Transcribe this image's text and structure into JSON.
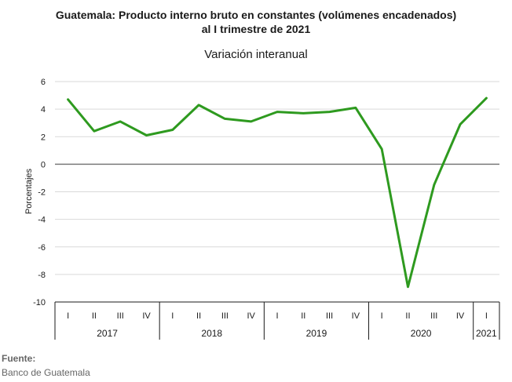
{
  "header": {
    "title_line1": "Guatemala: Producto interno bruto en constantes (volúmenes encadenados)",
    "title_line2": "al I trimestre de 2021",
    "subtitle": "Variación interanual"
  },
  "footer": {
    "source_label": "Fuente:",
    "source_text": "Banco de Guatemala"
  },
  "chart_data": {
    "type": "line",
    "title": "Guatemala: Producto interno bruto en constantes (volúmenes encadenados) al I trimestre de 2021",
    "subtitle": "Variación interanual",
    "ylabel": "Porcentajes",
    "xlabel": "",
    "ylim": [
      -10,
      6
    ],
    "yticks": [
      6,
      4,
      2,
      0,
      -2,
      -4,
      -6,
      -8,
      -10
    ],
    "grid": true,
    "legend": "none",
    "line_color": "#2e9a1f",
    "categories": [
      "I",
      "II",
      "III",
      "IV",
      "I",
      "II",
      "III",
      "IV",
      "I",
      "II",
      "III",
      "IV",
      "I",
      "II",
      "III",
      "IV",
      "I"
    ],
    "years": [
      {
        "label": "2017",
        "quarters": 4
      },
      {
        "label": "2018",
        "quarters": 4
      },
      {
        "label": "2019",
        "quarters": 4
      },
      {
        "label": "2020",
        "quarters": 4
      },
      {
        "label": "2021",
        "quarters": 1
      }
    ],
    "series": [
      {
        "values": [
          4.7,
          2.4,
          3.1,
          2.1,
          2.5,
          4.3,
          3.3,
          3.1,
          3.8,
          3.7,
          3.8,
          4.1,
          1.1,
          -8.9,
          -1.5,
          2.9,
          4.8
        ]
      }
    ]
  }
}
